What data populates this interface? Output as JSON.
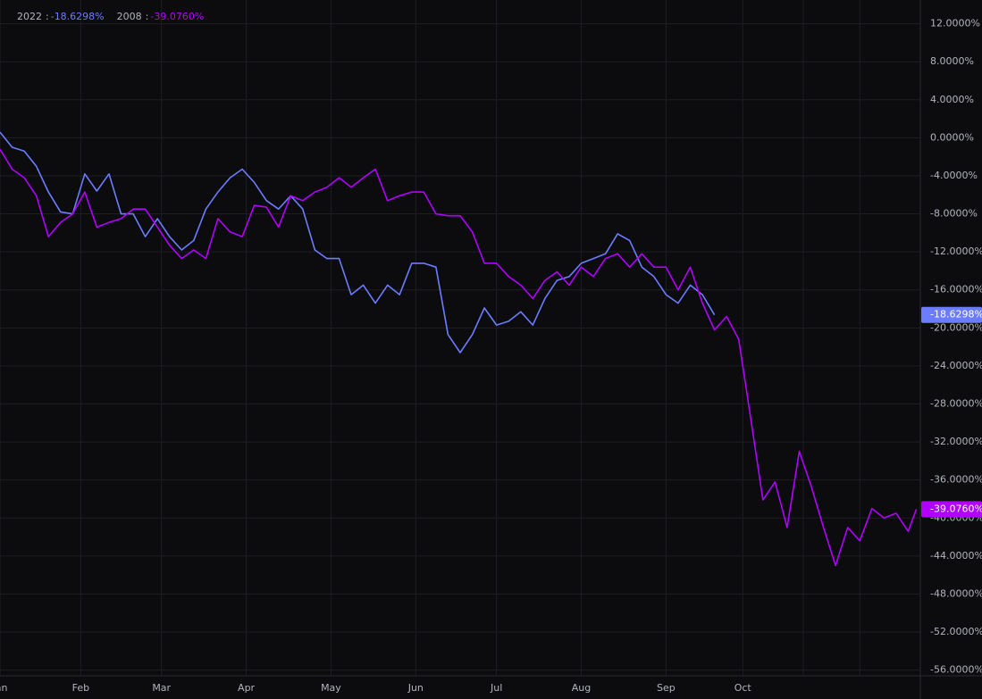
{
  "chart_data": {
    "type": "line",
    "legend_separator": ":",
    "x": [
      0,
      3,
      6,
      9,
      12,
      15,
      18,
      21,
      24,
      27,
      30,
      33,
      36,
      39,
      42,
      45,
      48,
      51,
      54,
      57,
      60,
      63,
      66,
      69,
      72,
      75,
      78,
      81,
      84,
      87,
      90,
      93,
      96,
      99,
      102,
      105,
      108,
      111,
      114,
      117,
      120,
      123,
      126,
      129,
      132,
      135,
      138,
      141,
      144,
      147,
      150,
      153,
      156,
      159,
      162,
      165,
      168,
      171,
      174,
      177,
      180,
      183,
      186,
      189,
      192,
      195,
      198,
      201,
      204,
      207,
      210,
      213,
      216,
      219,
      222,
      225,
      227
    ],
    "series": [
      {
        "name": "2022",
        "color": "#6c7cff",
        "values": [
          0.6,
          -1,
          -1.4,
          -3,
          -5.7,
          -7.8,
          -8,
          -3.8,
          -5.6,
          -3.8,
          -8,
          -8,
          -10.4,
          -8.5,
          -10.4,
          -11.8,
          -10.8,
          -7.5,
          -5.7,
          -4.2,
          -3.3,
          -4.7,
          -6.6,
          -7.5,
          -6.1,
          -7.5,
          -11.8,
          -12.7,
          -12.7,
          -16.5,
          -15.5,
          -17.4,
          -15.5,
          -16.5,
          -13.2,
          -13.2,
          -13.6,
          -20.7,
          -22.6,
          -20.7,
          -17.9,
          -19.7,
          -19.3,
          -18.3,
          -19.7,
          -16.9,
          -15,
          -14.6,
          -13.2,
          -12.7,
          -12.2,
          -10.1,
          -10.8,
          -13.6,
          -14.6,
          -16.5,
          -17.4,
          -15.5,
          -16.5,
          -18.6298,
          null,
          null,
          null,
          null,
          null,
          null,
          null,
          null,
          null,
          null,
          null,
          null,
          null,
          null,
          null,
          null,
          null
        ],
        "value_labels": [
          null,
          null,
          null,
          null,
          null,
          null,
          null,
          null,
          null,
          null,
          null,
          null,
          null,
          null,
          null,
          null,
          null,
          null,
          null,
          null,
          null,
          null,
          null,
          null,
          null,
          null,
          null,
          null,
          null,
          null,
          null,
          null,
          null,
          null,
          null,
          null,
          null,
          null,
          null,
          null,
          null,
          null,
          null,
          null,
          null,
          null,
          null,
          null,
          null,
          null,
          null,
          null,
          null,
          null,
          null,
          null,
          null,
          null,
          null,
          "-18.6298%",
          null,
          null,
          null,
          null,
          null,
          null,
          null,
          null,
          null,
          null,
          null,
          null,
          null,
          null,
          null,
          null,
          null
        ]
      },
      {
        "name": "2008",
        "color": "#b100ff",
        "values": [
          -1.2,
          -3.3,
          -4.2,
          -6.1,
          -10.4,
          -8.9,
          -8,
          -5.7,
          -9.4,
          -8.9,
          -8.5,
          -7.5,
          -7.5,
          -9.4,
          -11.3,
          -12.7,
          -11.8,
          -12.7,
          -8.5,
          -9.9,
          -10.4,
          -7.1,
          -7.3,
          -9.4,
          -6.1,
          -6.6,
          -5.7,
          -5.2,
          -4.2,
          -5.2,
          -4.2,
          -3.3,
          -6.6,
          -6.1,
          -5.7,
          -5.7,
          -8,
          -8.2,
          -8.2,
          -9.9,
          -13.2,
          -13.2,
          -14.6,
          -15.5,
          -16.9,
          -15,
          -14.1,
          -15.5,
          -13.6,
          -14.6,
          -12.7,
          -12.2,
          -13.6,
          -12.2,
          -13.6,
          -13.6,
          -16,
          -13.6,
          -17.4,
          -20.2,
          -18.8,
          -21.2,
          -29.6,
          -38.1,
          -36.2,
          -41,
          -33,
          -36.7,
          -41,
          -45,
          -41,
          -42.4,
          -39,
          -40,
          -39.5,
          -41.4,
          -39.076
        ],
        "value_labels": [
          null,
          null,
          null,
          null,
          null,
          null,
          null,
          null,
          null,
          null,
          null,
          null,
          null,
          null,
          null,
          null,
          null,
          null,
          null,
          null,
          null,
          null,
          null,
          null,
          null,
          null,
          null,
          null,
          null,
          null,
          null,
          null,
          null,
          null,
          null,
          null,
          null,
          null,
          null,
          null,
          null,
          null,
          null,
          null,
          null,
          null,
          null,
          null,
          null,
          null,
          null,
          null,
          null,
          null,
          null,
          null,
          null,
          null,
          null,
          null,
          null,
          null,
          null,
          null,
          null,
          null,
          null,
          null,
          null,
          null,
          null,
          null,
          null,
          null,
          null,
          null,
          "-39.0760%"
        ]
      }
    ],
    "xlim": [
      0,
      228
    ],
    "xticks": [
      {
        "value": 0,
        "label": "Jan"
      },
      {
        "value": 20,
        "label": "Feb"
      },
      {
        "value": 40,
        "label": "Mar"
      },
      {
        "value": 61,
        "label": "Apr"
      },
      {
        "value": 82,
        "label": "May"
      },
      {
        "value": 103,
        "label": "Jun"
      },
      {
        "value": 123,
        "label": "Jul"
      },
      {
        "value": 144,
        "label": "Aug"
      },
      {
        "value": 165,
        "label": "Sep"
      },
      {
        "value": 184,
        "label": "Oct"
      },
      {
        "value": 199,
        "label": null
      },
      {
        "value": 213,
        "label": null
      }
    ],
    "ylim": [
      -56.6,
      14.5
    ],
    "yticks": [
      {
        "value": 12,
        "label": "12.0000%"
      },
      {
        "value": 8,
        "label": "8.0000%"
      },
      {
        "value": 4,
        "label": "4.0000%"
      },
      {
        "value": 0,
        "label": "0.0000%"
      },
      {
        "value": -4,
        "label": "-4.0000%"
      },
      {
        "value": -8,
        "label": "-8.0000%"
      },
      {
        "value": -12,
        "label": "-12.0000%"
      },
      {
        "value": -16,
        "label": "-16.0000%"
      },
      {
        "value": -20,
        "label": "-20.0000%"
      },
      {
        "value": -24,
        "label": "-24.0000%"
      },
      {
        "value": -28,
        "label": "-28.0000%"
      },
      {
        "value": -32,
        "label": "-32.0000%"
      },
      {
        "value": -36,
        "label": "-36.0000%"
      },
      {
        "value": -40,
        "label": "-40.0000%"
      },
      {
        "value": -44,
        "label": "-44.0000%"
      },
      {
        "value": -48,
        "label": "-48.0000%"
      },
      {
        "value": -52,
        "label": "-52.0000%"
      },
      {
        "value": -56,
        "label": "-56.0000%"
      }
    ],
    "grid": true
  }
}
